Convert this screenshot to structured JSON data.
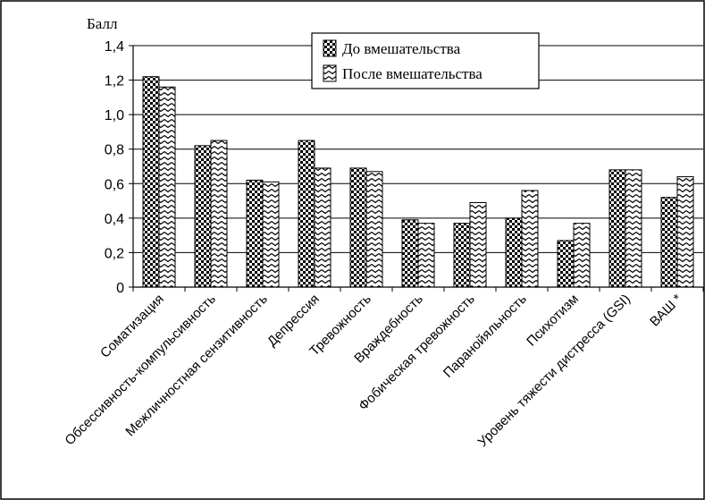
{
  "chart_data": {
    "type": "bar",
    "ylabel": "Балл",
    "ylim": [
      0,
      1.4
    ],
    "yticks": [
      "0",
      "0,2",
      "0,4",
      "0,6",
      "0,8",
      "1,0",
      "1,2",
      "1,4"
    ],
    "grid": true,
    "legend_position": "top-right",
    "categories": [
      "Соматизация",
      "Обсессивность-компульсивность",
      "Межличностная сензитивность",
      "Депрессия",
      "Тревожность",
      "Враждебность",
      "Фобическая тревожность",
      "Паранойяльность",
      "Психотизм",
      "Уровень тяжести дистресса (GSI)",
      "ВАШ *"
    ],
    "series": [
      {
        "name": "До вмешательства",
        "pattern": "checkerboard",
        "values": [
          1.22,
          0.82,
          0.62,
          0.85,
          0.69,
          0.39,
          0.37,
          0.4,
          0.27,
          0.68,
          0.52
        ]
      },
      {
        "name": "После вмешательства",
        "pattern": "zigzag",
        "values": [
          1.16,
          0.85,
          0.61,
          0.69,
          0.67,
          0.37,
          0.49,
          0.56,
          0.37,
          0.68,
          0.64
        ]
      }
    ]
  }
}
